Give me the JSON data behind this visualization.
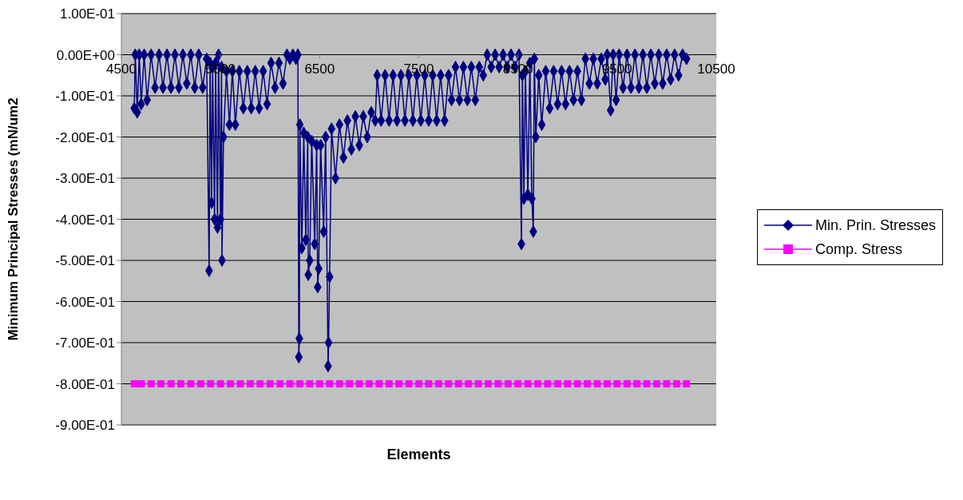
{
  "chart_data": {
    "type": "line",
    "xlabel": "Elements",
    "ylabel": "Minimum Principal Stresses (mN/um2",
    "xlim": [
      4500,
      10500
    ],
    "xticks": [
      4500,
      5500,
      6500,
      7500,
      8500,
      9500,
      10500
    ],
    "ylim": [
      -0.9,
      0.1
    ],
    "yticks": [
      {
        "value": 0.1,
        "label": "1.00E-01"
      },
      {
        "value": 0,
        "label": "0.00E+00"
      },
      {
        "value": -0.1,
        "label": "-1.00E-01"
      },
      {
        "value": -0.2,
        "label": "-2.00E-01"
      },
      {
        "value": -0.3,
        "label": "-3.00E-01"
      },
      {
        "value": -0.4,
        "label": "-4.00E-01"
      },
      {
        "value": -0.5,
        "label": "-5.00E-01"
      },
      {
        "value": -0.6,
        "label": "-6.00E-01"
      },
      {
        "value": -0.7,
        "label": "-7.00E-01"
      },
      {
        "value": -0.8,
        "label": "-8.00E-01"
      },
      {
        "value": -0.9,
        "label": "-9.00E-01"
      }
    ],
    "grid": "y",
    "legend": "right",
    "series": [
      {
        "name": "Min. Prin. Stresses",
        "color": "#000080",
        "marker": "diamond",
        "x": [
          4630,
          4640,
          4660,
          4680,
          4700,
          4730,
          4760,
          4800,
          4840,
          4880,
          4920,
          4960,
          5000,
          5040,
          5080,
          5120,
          5160,
          5200,
          5240,
          5280,
          5320,
          5360,
          5385,
          5395,
          5410,
          5420,
          5440,
          5450,
          5470,
          5480,
          5500,
          5510,
          5515,
          5530,
          5560,
          5590,
          5620,
          5650,
          5690,
          5730,
          5770,
          5810,
          5850,
          5890,
          5930,
          5970,
          6010,
          6050,
          6090,
          6130,
          6170,
          6200,
          6230,
          6260,
          6280,
          6290,
          6295,
          6300,
          6320,
          6340,
          6360,
          6380,
          6385,
          6400,
          6420,
          6450,
          6470,
          6480,
          6490,
          6510,
          6540,
          6560,
          6585,
          6590,
          6600,
          6620,
          6660,
          6700,
          6740,
          6780,
          6820,
          6860,
          6900,
          6940,
          6980,
          7020,
          7060,
          7080,
          7120,
          7160,
          7200,
          7240,
          7280,
          7320,
          7360,
          7400,
          7440,
          7480,
          7520,
          7560,
          7600,
          7640,
          7680,
          7720,
          7760,
          7800,
          7830,
          7870,
          7910,
          7950,
          7990,
          8030,
          8070,
          8110,
          8150,
          8190,
          8230,
          8270,
          8310,
          8350,
          8390,
          8430,
          8470,
          8510,
          8535,
          8545,
          8560,
          8575,
          8600,
          8620,
          8640,
          8655,
          8665,
          8680,
          8710,
          8740,
          8780,
          8820,
          8860,
          8900,
          8940,
          8980,
          9020,
          9060,
          9100,
          9140,
          9180,
          9220,
          9260,
          9300,
          9340,
          9380,
          9400,
          9435,
          9460,
          9490,
          9520,
          9560,
          9600,
          9640,
          9680,
          9720,
          9760,
          9800,
          9840,
          9880,
          9920,
          9960,
          10000,
          10040,
          10080,
          10120,
          10160,
          10200
        ],
        "values": [
          -0.13,
          0.0,
          -0.14,
          0.0,
          -0.12,
          0.0,
          -0.11,
          0.0,
          -0.08,
          0.0,
          -0.08,
          0.0,
          -0.08,
          0.0,
          -0.08,
          0.0,
          -0.07,
          0.0,
          -0.08,
          0.0,
          -0.08,
          -0.01,
          -0.525,
          -0.02,
          -0.36,
          -0.03,
          -0.4,
          -0.02,
          -0.42,
          0.0,
          -0.4,
          -0.03,
          -0.5,
          -0.2,
          -0.04,
          -0.17,
          -0.04,
          -0.17,
          -0.04,
          -0.13,
          -0.04,
          -0.13,
          -0.04,
          -0.13,
          -0.04,
          -0.12,
          -0.02,
          -0.08,
          -0.02,
          -0.07,
          0.0,
          -0.01,
          0.0,
          -0.01,
          0.0,
          -0.735,
          -0.69,
          -0.17,
          -0.47,
          -0.19,
          -0.45,
          -0.2,
          -0.535,
          -0.5,
          -0.21,
          -0.46,
          -0.22,
          -0.565,
          -0.52,
          -0.22,
          -0.43,
          -0.2,
          -0.757,
          -0.7,
          -0.54,
          -0.18,
          -0.3,
          -0.17,
          -0.25,
          -0.16,
          -0.23,
          -0.15,
          -0.22,
          -0.15,
          -0.2,
          -0.14,
          -0.16,
          -0.05,
          -0.16,
          -0.05,
          -0.16,
          -0.05,
          -0.16,
          -0.05,
          -0.16,
          -0.05,
          -0.16,
          -0.05,
          -0.16,
          -0.05,
          -0.16,
          -0.05,
          -0.16,
          -0.05,
          -0.16,
          -0.05,
          -0.11,
          -0.03,
          -0.11,
          -0.03,
          -0.11,
          -0.03,
          -0.11,
          -0.03,
          -0.05,
          0.0,
          -0.03,
          0.0,
          -0.03,
          0.0,
          -0.03,
          0.0,
          -0.03,
          0.0,
          -0.46,
          -0.05,
          -0.35,
          -0.04,
          -0.34,
          -0.02,
          -0.35,
          -0.43,
          -0.01,
          -0.2,
          -0.05,
          -0.17,
          -0.04,
          -0.13,
          -0.04,
          -0.12,
          -0.04,
          -0.12,
          -0.04,
          -0.11,
          -0.04,
          -0.11,
          -0.01,
          -0.07,
          -0.01,
          -0.07,
          -0.01,
          -0.06,
          0.0,
          -0.135,
          0.0,
          -0.11,
          0.0,
          -0.08,
          0.0,
          -0.08,
          0.0,
          -0.08,
          0.0,
          -0.08,
          0.0,
          -0.07,
          0.0,
          -0.07,
          0.0,
          -0.06,
          0.0,
          -0.05,
          0.0,
          -0.01
        ]
      },
      {
        "name": "Comp. Stress",
        "color": "#ff00ff",
        "marker": "square",
        "x": [
          4630,
          4700,
          4800,
          4900,
          5000,
          5100,
          5200,
          5300,
          5400,
          5500,
          5600,
          5700,
          5800,
          5900,
          6000,
          6100,
          6200,
          6300,
          6400,
          6500,
          6600,
          6700,
          6800,
          6900,
          7000,
          7100,
          7200,
          7300,
          7400,
          7500,
          7600,
          7700,
          7800,
          7900,
          8000,
          8100,
          8200,
          8300,
          8400,
          8500,
          8600,
          8700,
          8800,
          8900,
          9000,
          9100,
          9200,
          9300,
          9400,
          9500,
          9600,
          9700,
          9800,
          9900,
          10000,
          10100,
          10200
        ],
        "values": [
          -0.8,
          -0.8,
          -0.8,
          -0.8,
          -0.8,
          -0.8,
          -0.8,
          -0.8,
          -0.8,
          -0.8,
          -0.8,
          -0.8,
          -0.8,
          -0.8,
          -0.8,
          -0.8,
          -0.8,
          -0.8,
          -0.8,
          -0.8,
          -0.8,
          -0.8,
          -0.8,
          -0.8,
          -0.8,
          -0.8,
          -0.8,
          -0.8,
          -0.8,
          -0.8,
          -0.8,
          -0.8,
          -0.8,
          -0.8,
          -0.8,
          -0.8,
          -0.8,
          -0.8,
          -0.8,
          -0.8,
          -0.8,
          -0.8,
          -0.8,
          -0.8,
          -0.8,
          -0.8,
          -0.8,
          -0.8,
          -0.8,
          -0.8,
          -0.8,
          -0.8,
          -0.8,
          -0.8,
          -0.8,
          -0.8,
          -0.8
        ]
      }
    ]
  }
}
